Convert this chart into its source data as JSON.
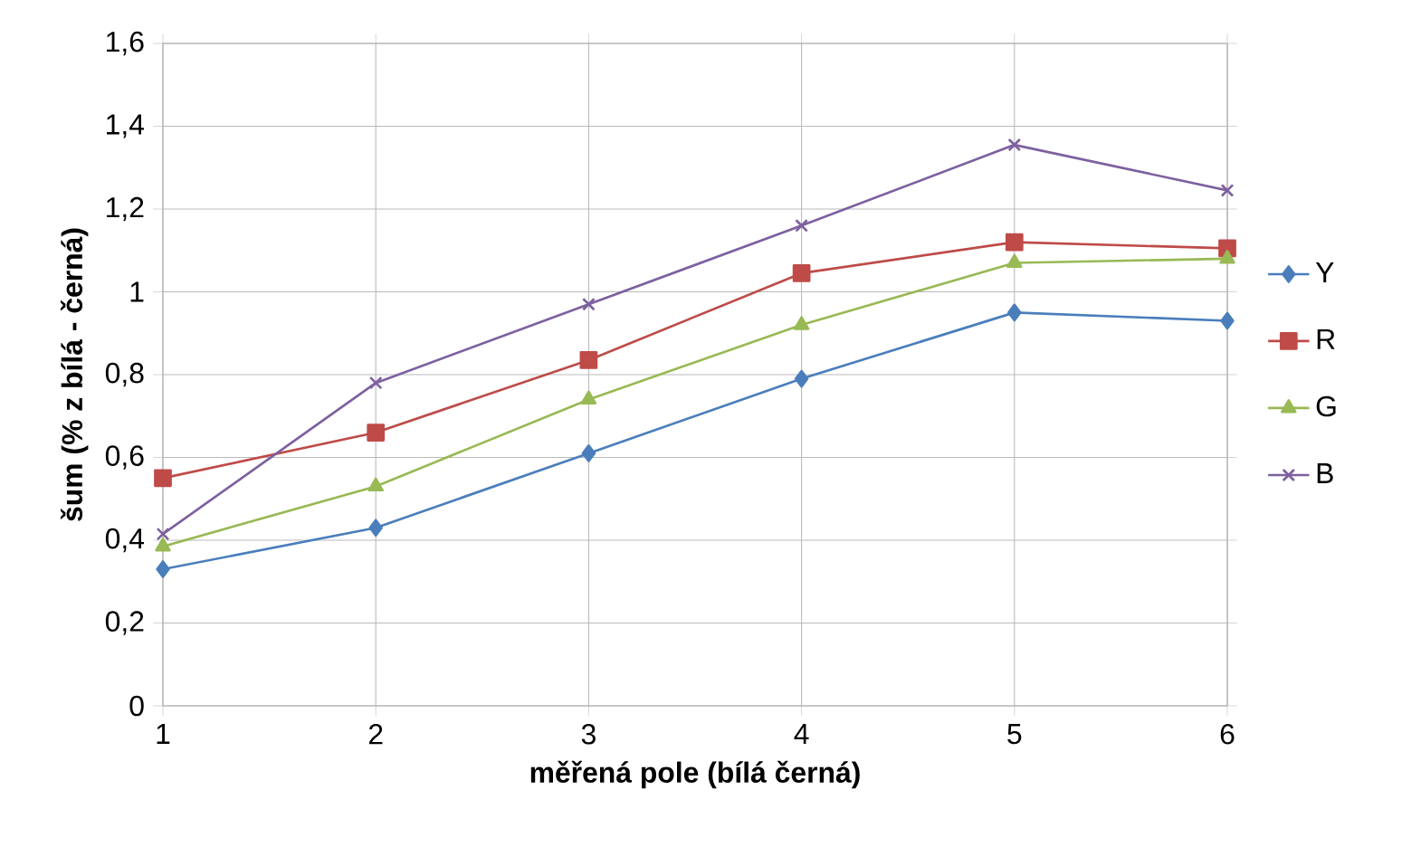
{
  "chart_data": {
    "type": "line",
    "xlabel": "měřená pole (bílá černá)",
    "ylabel": "šum (% z bílá - černá)",
    "x": [
      1,
      2,
      3,
      4,
      5,
      6
    ],
    "xlim": [
      1,
      6
    ],
    "xticks": [
      1,
      2,
      3,
      4,
      5,
      6
    ],
    "ylim": [
      0,
      1.6
    ],
    "yticks": [
      0,
      {
        "value": 0.2,
        "label": "0,2"
      },
      {
        "value": 0.4,
        "label": "0,4"
      },
      {
        "value": 0.6,
        "label": "0,6"
      },
      {
        "value": 0.8,
        "label": "0,8"
      },
      1,
      {
        "value": 1.2,
        "label": "1,2"
      },
      {
        "value": 1.4,
        "label": "1,4"
      },
      {
        "value": 1.6,
        "label": "1,6"
      }
    ],
    "grid": true,
    "legend": "right",
    "line_style": "solid",
    "series": [
      {
        "name": "Y",
        "color": "#4a7ebb",
        "marker": "diamond",
        "values": [
          0.33,
          0.43,
          0.61,
          0.79,
          0.95,
          0.93
        ]
      },
      {
        "name": "R",
        "color": "#be4b48",
        "marker": "square",
        "values": [
          0.55,
          0.66,
          0.835,
          1.045,
          1.12,
          1.105
        ]
      },
      {
        "name": "G",
        "color": "#98b954",
        "marker": "triangle",
        "values": [
          0.385,
          0.53,
          0.74,
          0.92,
          1.07,
          1.08
        ]
      },
      {
        "name": "B",
        "color": "#7d60a0",
        "marker": "cross",
        "values": [
          0.415,
          0.78,
          0.97,
          1.16,
          1.355,
          1.245
        ]
      }
    ]
  }
}
